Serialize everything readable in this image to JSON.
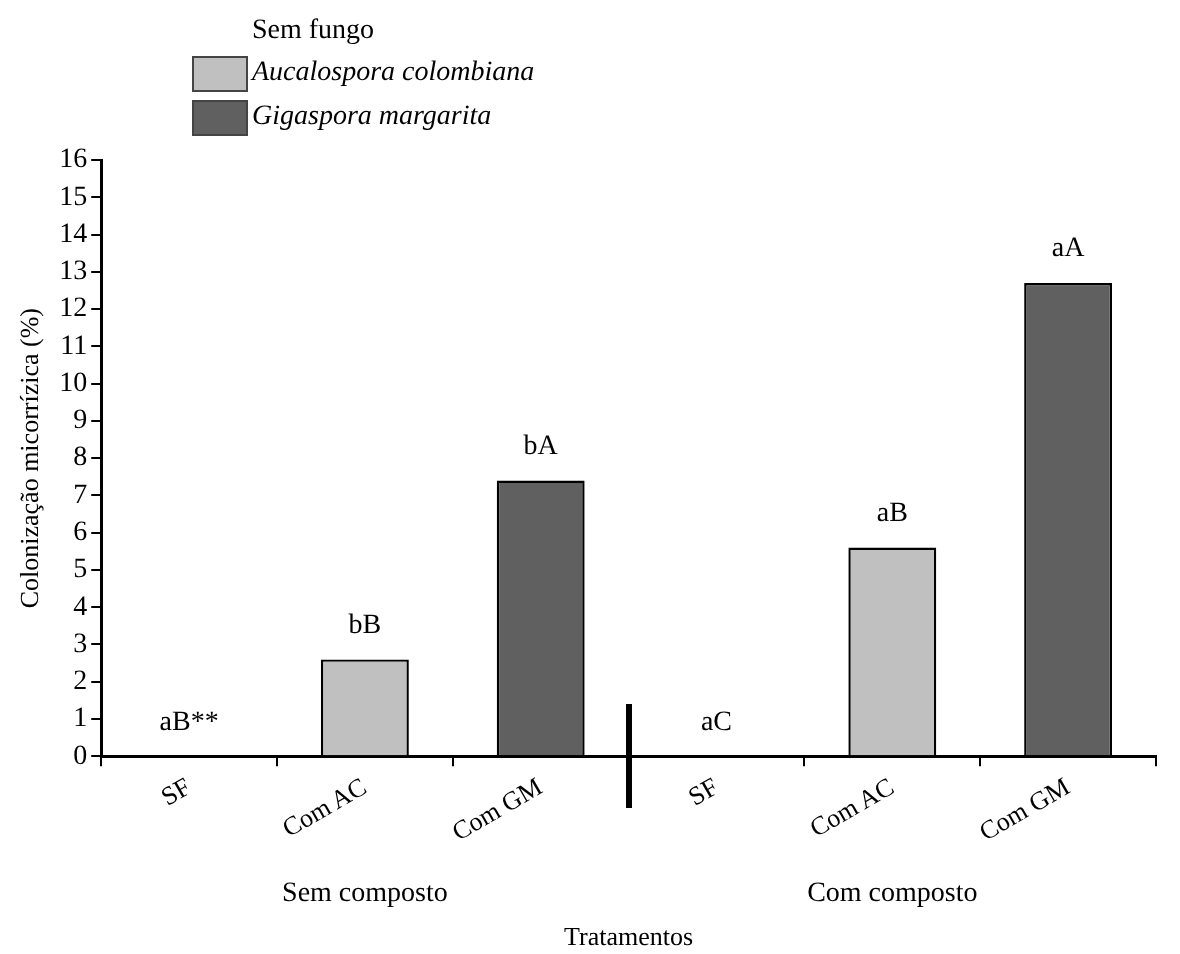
{
  "chart_data": {
    "type": "bar",
    "ylabel": "Colonização micorrízica (%)",
    "xlabel": "Tratamentos",
    "legend_title": "Sem fungo",
    "categories": [
      "SF",
      "Com AC",
      "Com GM",
      "SF",
      "Com AC",
      "Com GM"
    ],
    "series": [
      {
        "name": "Aucalospora colombiana",
        "color": "#c0c0c0",
        "values": [
          null,
          2.6,
          null,
          null,
          5.6,
          null
        ],
        "value_labels": [
          null,
          "bB",
          null,
          null,
          "aB",
          null
        ]
      },
      {
        "name": "Gigaspora margarita",
        "color": "#606060",
        "values": [
          null,
          null,
          7.4,
          null,
          null,
          12.7
        ],
        "value_labels": [
          null,
          null,
          "bA",
          null,
          null,
          "aA"
        ]
      },
      {
        "color": "#ffffff",
        "values": [
          0,
          null,
          null,
          0,
          null,
          null
        ],
        "value_labels": [
          "aB**",
          null,
          null,
          "aC",
          null,
          null
        ]
      }
    ],
    "annotations": [
      "Sem composto",
      "Com composto"
    ],
    "ylim": [
      0,
      16
    ],
    "yticks": [
      0,
      1,
      2,
      3,
      4,
      5,
      6,
      7,
      8,
      9,
      10,
      11,
      12,
      13,
      14,
      15,
      16
    ],
    "grid": false,
    "legend": "top left"
  }
}
